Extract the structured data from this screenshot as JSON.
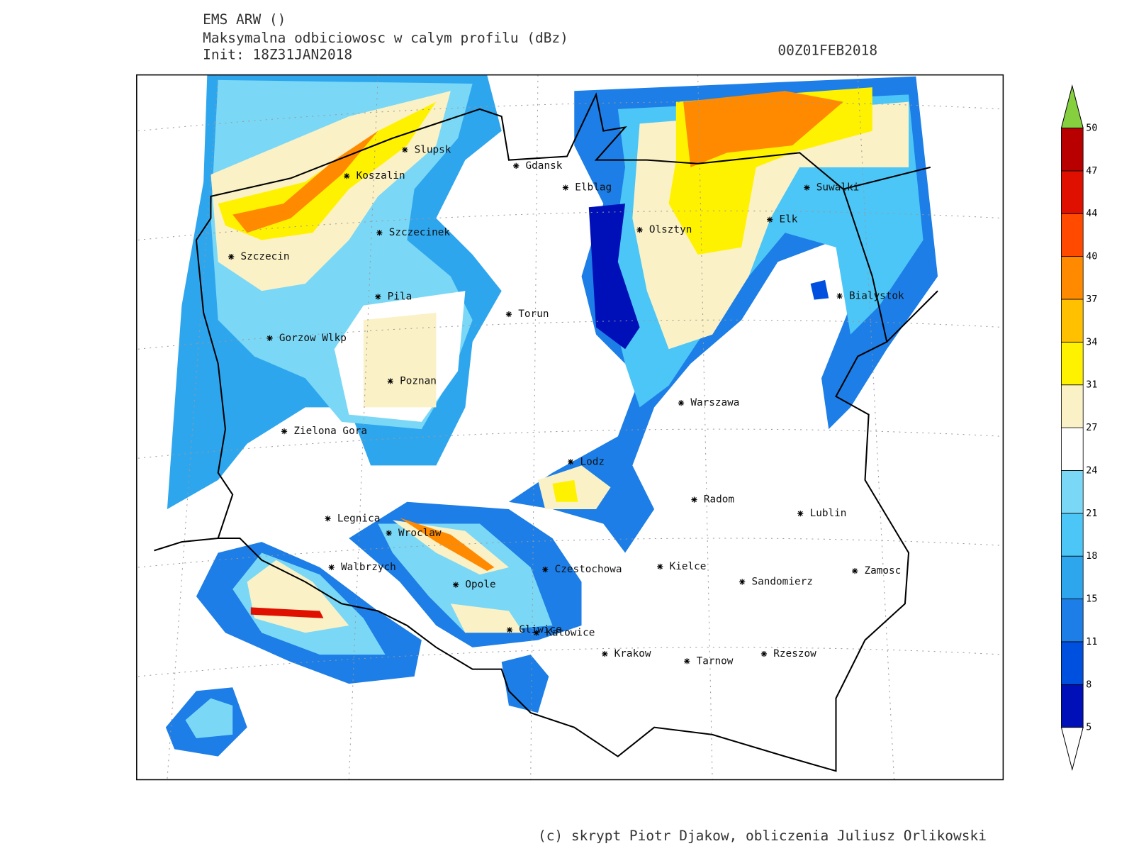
{
  "header": {
    "model": "EMS ARW ()",
    "title": "Maksymalna odbiciowosc w calym profilu (dBz)",
    "init": "Init: 18Z31JAN2018",
    "valid": "00Z01FEB2018"
  },
  "cities": [
    "Slupsk",
    "Koszalin",
    "Gdansk",
    "Elblag",
    "Suwalki",
    "Elk",
    "Olsztyn",
    "Szczecinek",
    "Szczecin",
    "Bialystok",
    "Pila",
    "Torun",
    "Gorzow Wlkp",
    "Poznan",
    "Warszawa",
    "Zielona Gora",
    "Lodz",
    "Radom",
    "Lublin",
    "Legnica",
    "Wroclaw",
    "Walbrzych",
    "Czestochowa",
    "Kielce",
    "Sandomierz",
    "Zamosc",
    "Opole",
    "Gliwice",
    "Katowice",
    "Krakow",
    "Tarnow",
    "Rzeszow"
  ],
  "colorbar": {
    "levels": [
      5,
      8,
      11,
      15,
      18,
      21,
      24,
      27,
      31,
      34,
      37,
      40,
      44,
      47,
      50
    ],
    "colors": [
      "#0010b8",
      "#0050e0",
      "#1c7ee6",
      "#2ea6ee",
      "#4cc6f6",
      "#7ad8f6",
      "#ffffff",
      "#fbf1c6",
      "#fff200",
      "#ffc000",
      "#ff8a00",
      "#ff4a00",
      "#e01000",
      "#b80000"
    ],
    "over_color": "#86d040"
  },
  "footer": "(c) skrypt Piotr Djakow, obliczenia Juliusz Orlikowski"
}
